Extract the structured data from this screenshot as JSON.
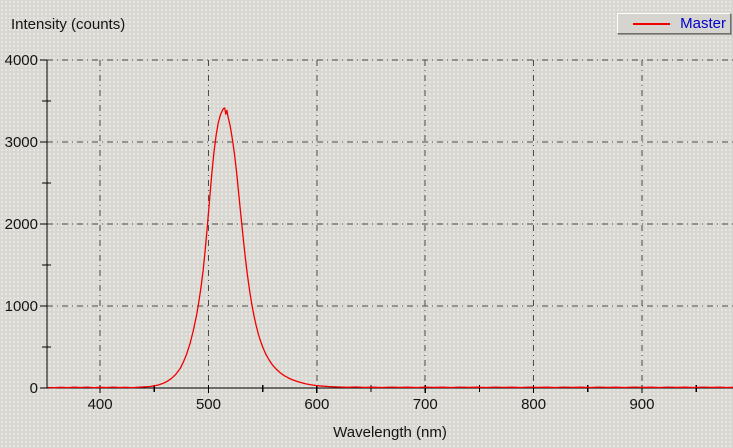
{
  "labels": {
    "y_axis_title": "Intensity (counts)",
    "x_axis_title": "Wavelength (nm)"
  },
  "legend": {
    "label": "Master",
    "line_color": "#f00000",
    "text_color": "#0000cc",
    "position": "top-right"
  },
  "chart_data": {
    "type": "line",
    "title": "",
    "xlabel": "Wavelength (nm)",
    "ylabel": "Intensity (counts)",
    "xlim": [
      351,
      984
    ],
    "ylim": [
      0,
      4000
    ],
    "x_major_ticks": [
      400,
      500,
      600,
      700,
      800,
      900
    ],
    "x_minor_ticks": [
      450,
      550,
      650,
      750,
      850,
      950
    ],
    "y_major_ticks": [
      0,
      1000,
      2000,
      3000,
      4000
    ],
    "y_minor_ticks": [
      500,
      1500,
      2500,
      3500
    ],
    "grid": "dash-dot major gridlines, both axes",
    "legend_entries": [
      "Master"
    ],
    "series": [
      {
        "name": "Master",
        "color": "#f00000",
        "peak_wavelength_nm": 515,
        "peak_counts": 3415,
        "points": [
          [
            352,
            6
          ],
          [
            358,
            4
          ],
          [
            364,
            9
          ],
          [
            370,
            5
          ],
          [
            376,
            10
          ],
          [
            382,
            6
          ],
          [
            388,
            11
          ],
          [
            394,
            5
          ],
          [
            400,
            9
          ],
          [
            406,
            6
          ],
          [
            412,
            11
          ],
          [
            418,
            6
          ],
          [
            424,
            9
          ],
          [
            430,
            5
          ],
          [
            436,
            10
          ],
          [
            441,
            13
          ],
          [
            446,
            18
          ],
          [
            450,
            26
          ],
          [
            454,
            38
          ],
          [
            458,
            56
          ],
          [
            462,
            82
          ],
          [
            466,
            118
          ],
          [
            470,
            170
          ],
          [
            474,
            240
          ],
          [
            477,
            320
          ],
          [
            480,
            420
          ],
          [
            483,
            545
          ],
          [
            486,
            700
          ],
          [
            489,
            890
          ],
          [
            491,
            1040
          ],
          [
            493,
            1220
          ],
          [
            495,
            1430
          ],
          [
            497,
            1680
          ],
          [
            499,
            1980
          ],
          [
            501,
            2300
          ],
          [
            503,
            2600
          ],
          [
            505,
            2870
          ],
          [
            507,
            3080
          ],
          [
            509,
            3230
          ],
          [
            511,
            3330
          ],
          [
            513,
            3390
          ],
          [
            514,
            3408
          ],
          [
            515,
            3415
          ],
          [
            516,
            3340
          ],
          [
            517,
            3385
          ],
          [
            518,
            3310
          ],
          [
            520,
            3195
          ],
          [
            522,
            3040
          ],
          [
            524,
            2850
          ],
          [
            526,
            2620
          ],
          [
            528,
            2360
          ],
          [
            530,
            2090
          ],
          [
            532,
            1830
          ],
          [
            534,
            1590
          ],
          [
            536,
            1370
          ],
          [
            538,
            1180
          ],
          [
            540,
            1020
          ],
          [
            542,
            880
          ],
          [
            544,
            760
          ],
          [
            546,
            660
          ],
          [
            548,
            575
          ],
          [
            550,
            500
          ],
          [
            553,
            410
          ],
          [
            556,
            340
          ],
          [
            559,
            282
          ],
          [
            562,
            236
          ],
          [
            566,
            188
          ],
          [
            570,
            150
          ],
          [
            574,
            121
          ],
          [
            578,
            98
          ],
          [
            582,
            79
          ],
          [
            586,
            63
          ],
          [
            590,
            50
          ],
          [
            595,
            38
          ],
          [
            600,
            29
          ],
          [
            606,
            22
          ],
          [
            612,
            17
          ],
          [
            620,
            12
          ],
          [
            628,
            9
          ],
          [
            636,
            12
          ],
          [
            644,
            7
          ],
          [
            652,
            10
          ],
          [
            660,
            6
          ],
          [
            668,
            11
          ],
          [
            676,
            7
          ],
          [
            684,
            10
          ],
          [
            692,
            6
          ],
          [
            700,
            11
          ],
          [
            708,
            7
          ],
          [
            716,
            10
          ],
          [
            724,
            6
          ],
          [
            732,
            11
          ],
          [
            740,
            7
          ],
          [
            748,
            10
          ],
          [
            756,
            6
          ],
          [
            764,
            11
          ],
          [
            772,
            7
          ],
          [
            780,
            10
          ],
          [
            788,
            6
          ],
          [
            796,
            11
          ],
          [
            804,
            7
          ],
          [
            812,
            10
          ],
          [
            820,
            6
          ],
          [
            828,
            11
          ],
          [
            836,
            7
          ],
          [
            844,
            10
          ],
          [
            852,
            6
          ],
          [
            860,
            11
          ],
          [
            868,
            7
          ],
          [
            876,
            10
          ],
          [
            884,
            6
          ],
          [
            892,
            11
          ],
          [
            900,
            7
          ],
          [
            908,
            10
          ],
          [
            916,
            6
          ],
          [
            924,
            11
          ],
          [
            932,
            7
          ],
          [
            940,
            10
          ],
          [
            948,
            6
          ],
          [
            956,
            11
          ],
          [
            964,
            7
          ],
          [
            972,
            10
          ],
          [
            978,
            6
          ],
          [
            984,
            9
          ]
        ]
      }
    ]
  }
}
